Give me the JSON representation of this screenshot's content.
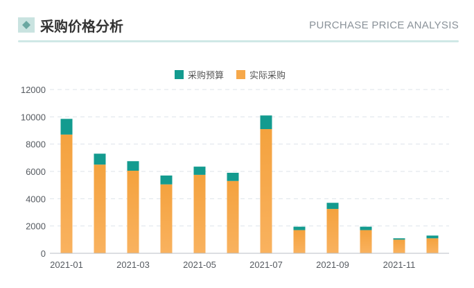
{
  "header": {
    "title": "采购价格分析",
    "subtitle": "PURCHASE PRICE ANALYSIS",
    "icon": "diamond-square-icon"
  },
  "colors": {
    "budget": "#139b8f",
    "actual": "#f6a84a",
    "accent_rule": "#cfe8e6"
  },
  "chart_data": {
    "type": "bar",
    "stacked": true,
    "categories": [
      "2021-01",
      "2021-02",
      "2021-03",
      "2021-04",
      "2021-05",
      "2021-06",
      "2021-07",
      "2021-08",
      "2021-09",
      "2021-10",
      "2021-11",
      "2021-12"
    ],
    "x_tick_labels": [
      "2021-01",
      "2021-03",
      "2021-05",
      "2021-07",
      "2021-09",
      "2021-11"
    ],
    "series": [
      {
        "name": "实际采购",
        "values": [
          8700,
          6500,
          6050,
          5050,
          5750,
          5300,
          9100,
          1700,
          3250,
          1700,
          1000,
          1100
        ]
      },
      {
        "name": "采购预算",
        "values": [
          1150,
          800,
          700,
          650,
          600,
          600,
          1000,
          250,
          450,
          250,
          100,
          200
        ]
      }
    ],
    "ylim": [
      0,
      12000
    ],
    "y_ticks": [
      0,
      2000,
      4000,
      6000,
      8000,
      10000,
      12000
    ],
    "grid": true,
    "legend_position": "top-center"
  }
}
